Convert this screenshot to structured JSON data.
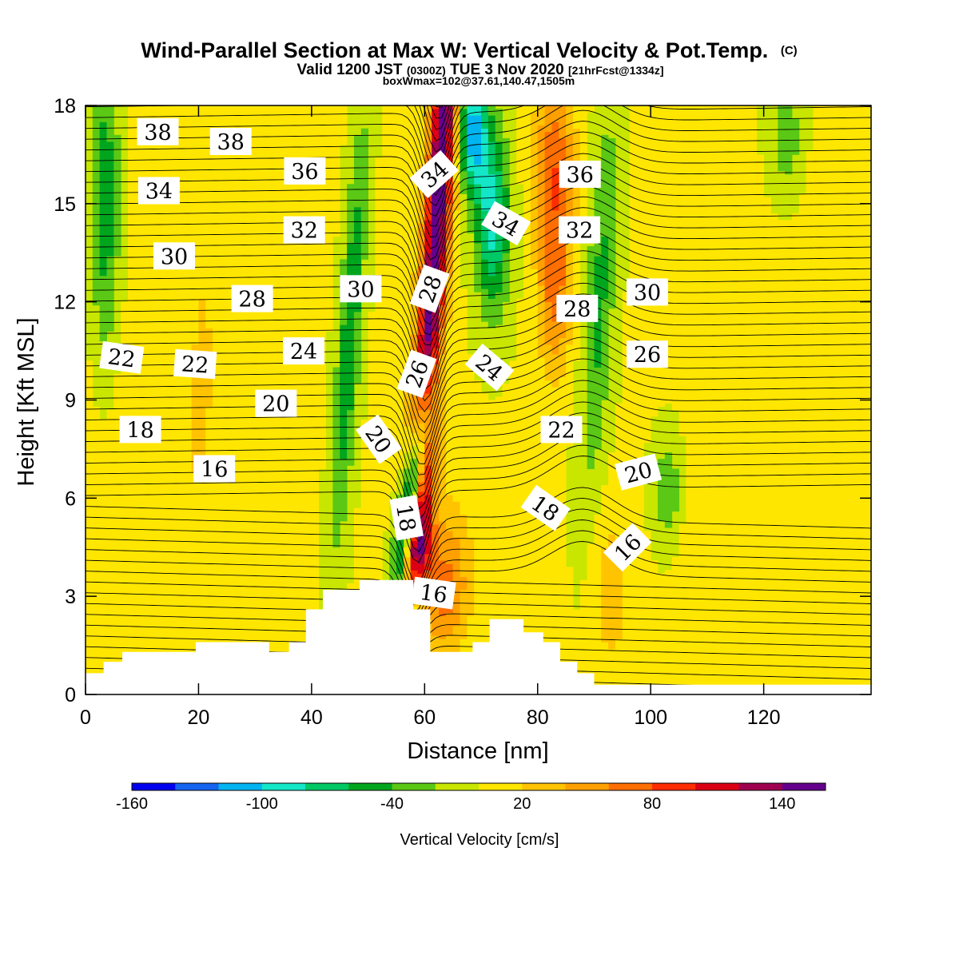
{
  "chart_data": {
    "type": "heatmap",
    "title": "Wind-Parallel Section at Max W: Vertical Velocity & Pot.Temp.",
    "title_mark": "(C)",
    "subtitle_parts": {
      "valid": "Valid 1200 JST",
      "zulu": "(0300Z)",
      "date": "TUE 3 Nov 2020",
      "fcst": "[21hrFcst@1334z]"
    },
    "subtitle2": "boxWmax=102@37.61,140.47,1505m",
    "xlabel": "Distance [nm]",
    "ylabel": "Height [Kft MSL]",
    "xlim": [
      0,
      139
    ],
    "ylim": [
      0,
      18
    ],
    "x_ticks": [
      0,
      20,
      40,
      60,
      80,
      100,
      120
    ],
    "y_ticks": [
      0,
      3,
      6,
      9,
      12,
      15,
      18
    ],
    "grid": false,
    "colorbar": {
      "label": "Vertical Velocity [cm/s]",
      "levels": [
        -160,
        -140,
        -120,
        -100,
        -80,
        -60,
        -40,
        -20,
        0,
        20,
        40,
        60,
        80,
        100,
        120,
        140,
        160
      ],
      "colors": [
        "#0000ee",
        "#1464f0",
        "#00b4f0",
        "#14e6c8",
        "#00c864",
        "#00a51e",
        "#5ac814",
        "#c8e600",
        "#ffe600",
        "#ffc300",
        "#ffa000",
        "#ff6e00",
        "#ff2d00",
        "#dc0014",
        "#a00050",
        "#64008c"
      ],
      "tick_labels": [
        "-160",
        "-100",
        "-40",
        "20",
        "80",
        "140"
      ]
    },
    "theta_contour_labels": [
      {
        "text": "38",
        "x": 12.8,
        "y": 17.2,
        "angle": 0
      },
      {
        "text": "38",
        "x": 25.7,
        "y": 16.9,
        "angle": 0
      },
      {
        "text": "36",
        "x": 38.8,
        "y": 16.0,
        "angle": 0
      },
      {
        "text": "34",
        "x": 13.0,
        "y": 15.4,
        "angle": 0
      },
      {
        "text": "34",
        "x": 61.7,
        "y": 15.9,
        "angle": -42
      },
      {
        "text": "34",
        "x": 74.4,
        "y": 14.4,
        "angle": 30
      },
      {
        "text": "36",
        "x": 87.5,
        "y": 15.9,
        "angle": 0
      },
      {
        "text": "32",
        "x": 38.7,
        "y": 14.2,
        "angle": 0
      },
      {
        "text": "32",
        "x": 87.4,
        "y": 14.2,
        "angle": 0
      },
      {
        "text": "30",
        "x": 15.7,
        "y": 13.4,
        "angle": 0
      },
      {
        "text": "30",
        "x": 48.7,
        "y": 12.4,
        "angle": 0
      },
      {
        "text": "30",
        "x": 99.4,
        "y": 12.3,
        "angle": 0
      },
      {
        "text": "28",
        "x": 29.5,
        "y": 12.1,
        "angle": 0
      },
      {
        "text": "28",
        "x": 60.9,
        "y": 12.4,
        "angle": -70
      },
      {
        "text": "28",
        "x": 87.0,
        "y": 11.8,
        "angle": 0
      },
      {
        "text": "22",
        "x": 6.4,
        "y": 10.3,
        "angle": 8
      },
      {
        "text": "22",
        "x": 19.4,
        "y": 10.1,
        "angle": 4
      },
      {
        "text": "24",
        "x": 38.6,
        "y": 10.5,
        "angle": 0
      },
      {
        "text": "26",
        "x": 58.6,
        "y": 9.8,
        "angle": -70
      },
      {
        "text": "24",
        "x": 71.5,
        "y": 10.0,
        "angle": 40
      },
      {
        "text": "26",
        "x": 99.4,
        "y": 10.4,
        "angle": 0
      },
      {
        "text": "20",
        "x": 33.7,
        "y": 8.9,
        "angle": 0
      },
      {
        "text": "18",
        "x": 9.7,
        "y": 8.1,
        "angle": 0
      },
      {
        "text": "20",
        "x": 51.9,
        "y": 7.8,
        "angle": 55
      },
      {
        "text": "22",
        "x": 84.2,
        "y": 8.1,
        "angle": 0
      },
      {
        "text": "16",
        "x": 22.8,
        "y": 6.9,
        "angle": 0
      },
      {
        "text": "20",
        "x": 97.8,
        "y": 6.8,
        "angle": -15
      },
      {
        "text": "18",
        "x": 56.8,
        "y": 5.4,
        "angle": 80
      },
      {
        "text": "18",
        "x": 81.4,
        "y": 5.7,
        "angle": 35
      },
      {
        "text": "16",
        "x": 95.9,
        "y": 4.5,
        "angle": -45
      },
      {
        "text": "16",
        "x": 61.6,
        "y": 3.1,
        "angle": 8
      }
    ]
  }
}
